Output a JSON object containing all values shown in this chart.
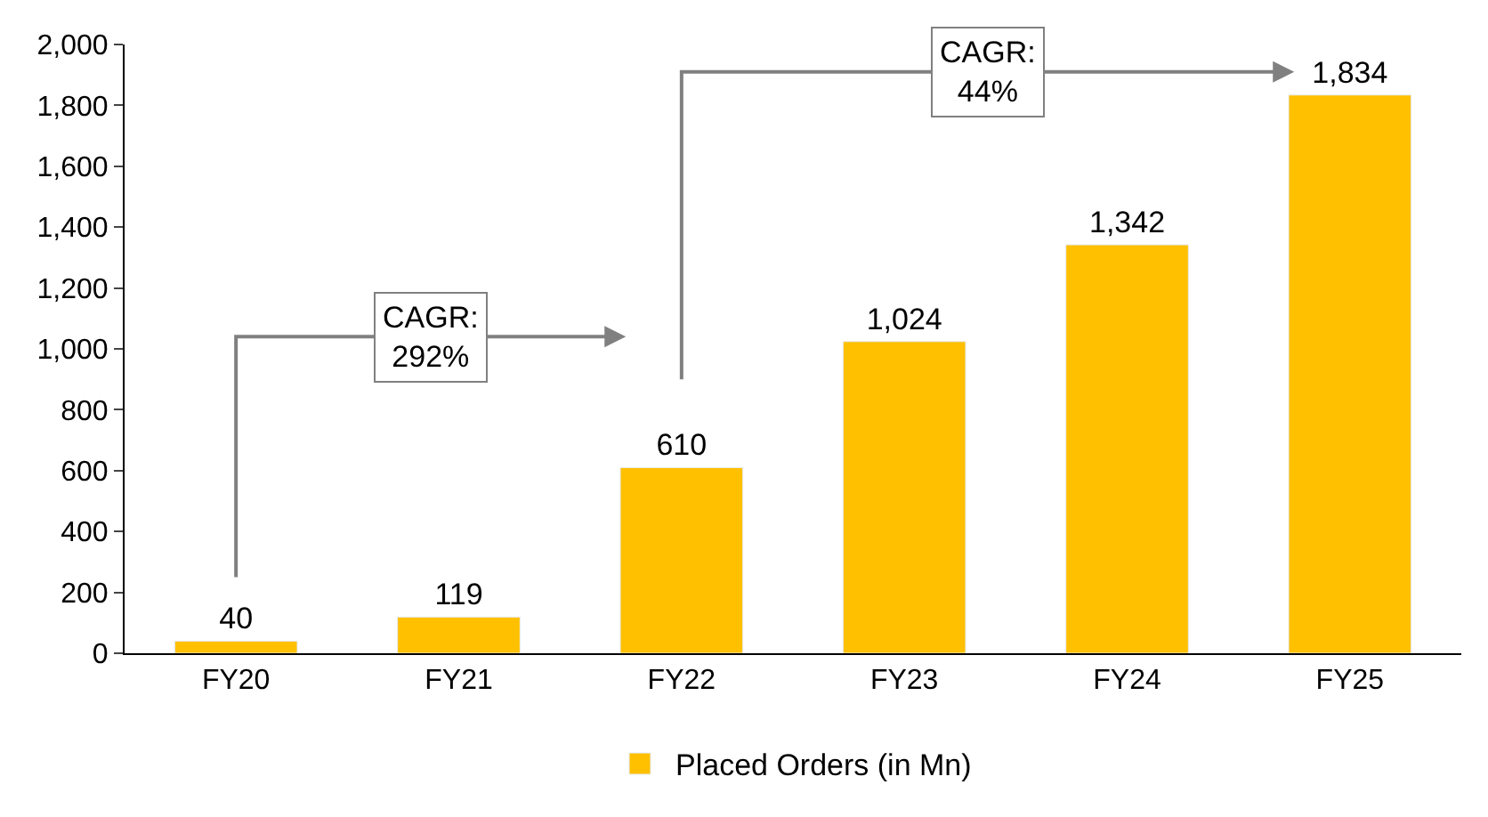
{
  "chart_data": {
    "type": "bar",
    "categories": [
      "FY20",
      "FY21",
      "FY22",
      "FY23",
      "FY24",
      "FY25"
    ],
    "series": [
      {
        "name": "Placed Orders (in Mn)",
        "color": "#ffc000",
        "values": [
          40,
          119,
          610,
          1024,
          1342,
          1834
        ]
      }
    ],
    "ylim": [
      0,
      2000
    ],
    "yticks": [
      {
        "value": 0,
        "label": "0"
      },
      {
        "value": 200,
        "label": "200"
      },
      {
        "value": 400,
        "label": "400"
      },
      {
        "value": 600,
        "label": "600"
      },
      {
        "value": 800,
        "label": "800"
      },
      {
        "value": 1000,
        "label": "1,000"
      },
      {
        "value": 1200,
        "label": "1,200"
      },
      {
        "value": 1400,
        "label": "1,400"
      },
      {
        "value": 1600,
        "label": "1,600"
      },
      {
        "value": 1800,
        "label": "1,800"
      },
      {
        "value": 2000,
        "label": "2,000"
      }
    ],
    "value_labels": [
      "40",
      "119",
      "610",
      "1,024",
      "1,342",
      "1,834"
    ],
    "annotations": [
      "CAGR:\n292%",
      "CAGR:\n44%"
    ],
    "legend": "bottom"
  }
}
